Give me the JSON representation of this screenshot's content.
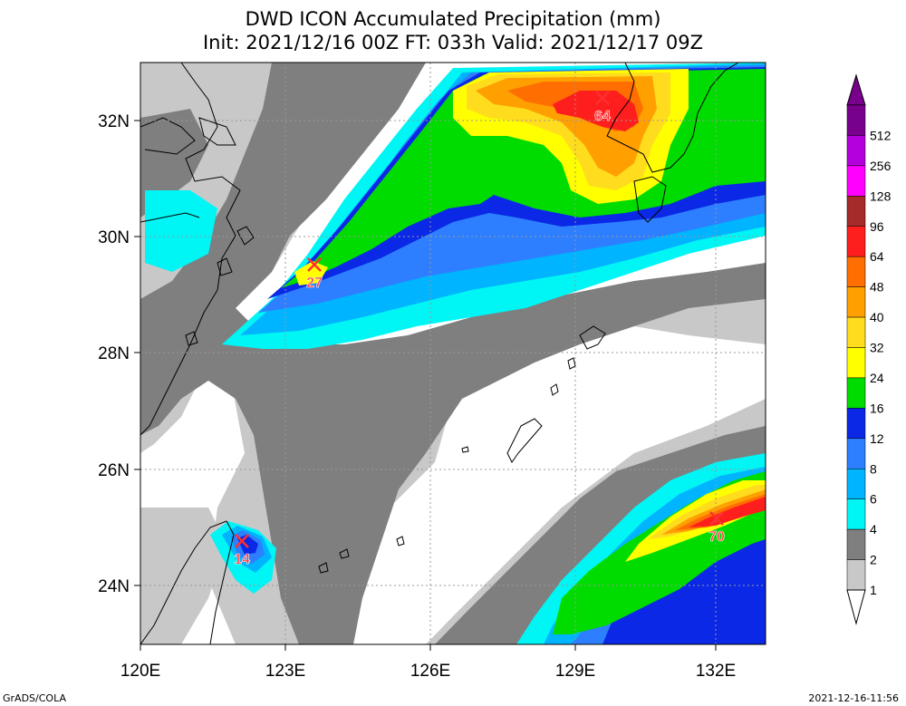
{
  "title": "DWD ICON Accumulated Precipitation (mm)",
  "subtitle": "Init: 2021/12/16 00Z  FT: 033h  Valid: 2021/12/17 09Z",
  "axes": {
    "lon_labels": [
      "120E",
      "123E",
      "126E",
      "129E",
      "132E"
    ],
    "lat_labels": [
      "32N",
      "30N",
      "28N",
      "26N",
      "24N"
    ]
  },
  "legend": {
    "levels": [
      "512",
      "256",
      "128",
      "96",
      "64",
      "48",
      "40",
      "32",
      "24",
      "16",
      "12",
      "8",
      "6",
      "4",
      "2",
      "1"
    ],
    "colors": {
      "1": "#c8c8c8",
      "2": "#7f7f7f",
      "4": "#00f5f5",
      "6": "#00b4ff",
      "8": "#2d7fff",
      "12": "#0a28e6",
      "16": "#00dc00",
      "24": "#ffff00",
      "32": "#ffdc1e",
      "40": "#ffa000",
      "48": "#ff6e00",
      "64": "#ff1e1e",
      "96": "#a52a2a",
      "128": "#ff00ff",
      "256": "#b400dc",
      "512": "#78008c"
    }
  },
  "markers": [
    {
      "label": "64"
    },
    {
      "label": "27"
    },
    {
      "label": "14"
    },
    {
      "label": "70"
    }
  ],
  "footer": {
    "left": "GrADS/COLA",
    "right": "2021-12-16-11:56"
  }
}
